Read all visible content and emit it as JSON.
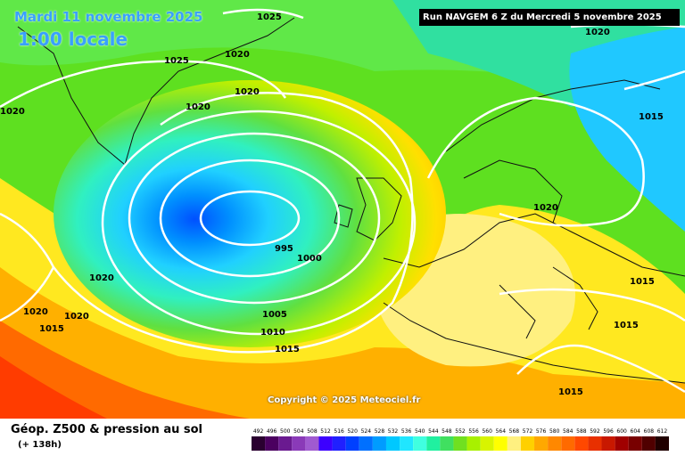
{
  "header": {
    "date": "Mardi 11 novembre 2025",
    "time": "1:00 locale",
    "run": "Run NAVGEM 6 Z du Mercredi 5 novembre 2025"
  },
  "copyright": "Copyright © 2025 Meteociel.fr",
  "footer": {
    "title": "Géop. Z500 & pression au sol",
    "subtitle": "(+ 138h)"
  },
  "scale": {
    "values": [
      "492",
      "496",
      "500",
      "504",
      "508",
      "512",
      "516",
      "520",
      "524",
      "528",
      "532",
      "536",
      "540",
      "544",
      "548",
      "552",
      "556",
      "560",
      "564",
      "568",
      "572",
      "576",
      "580",
      "584",
      "588",
      "592",
      "596",
      "600",
      "604",
      "608",
      "612"
    ],
    "colors": [
      "#2a0030",
      "#4b0060",
      "#6a1a90",
      "#8a3ab8",
      "#a05ad0",
      "#3c00ff",
      "#2020ff",
      "#0040ff",
      "#0070ff",
      "#009cff",
      "#00c8ff",
      "#20e6ff",
      "#40ffe0",
      "#20f0a0",
      "#40e060",
      "#70e020",
      "#a8f000",
      "#d8f400",
      "#ffff00",
      "#fff080",
      "#ffd000",
      "#ffa800",
      "#ff8800",
      "#ff6a00",
      "#ff4800",
      "#e83000",
      "#c81800",
      "#a00000",
      "#780000",
      "#500000",
      "#200000"
    ]
  },
  "isobars": [
    "1025",
    "1020",
    "1025",
    "1020",
    "1020",
    "1020",
    "1020",
    "1020",
    "1015",
    "1020",
    "1020",
    "1015",
    "1015",
    "1020",
    "995",
    "1000",
    "1005",
    "1010",
    "1015",
    "1015",
    "1015"
  ]
}
